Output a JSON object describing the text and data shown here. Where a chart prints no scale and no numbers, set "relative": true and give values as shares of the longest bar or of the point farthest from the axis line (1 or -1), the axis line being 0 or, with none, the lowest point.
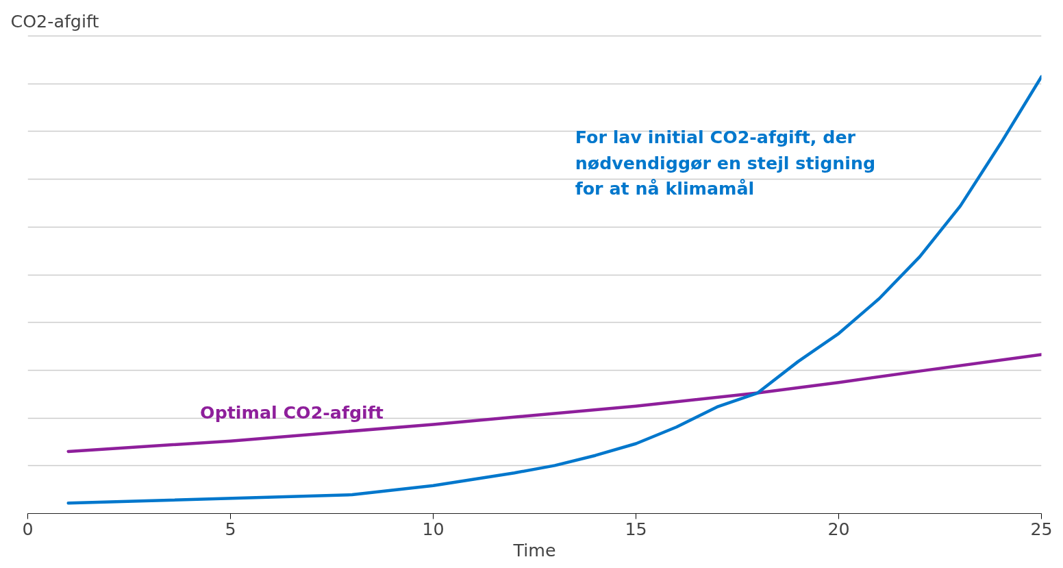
{
  "chart_data": {
    "type": "line",
    "relative": true,
    "ylabel": "CO2-afgift",
    "xlabel": "Time",
    "xlim": [
      0,
      25
    ],
    "xticks": [
      0,
      5,
      10,
      15,
      20,
      25
    ],
    "grid": "y",
    "line_style": "solid",
    "marker": "none",
    "series": [
      {
        "name": "Optimal CO2-afgift",
        "color": "#8e1f9b",
        "x": [
          1,
          5,
          10,
          15,
          18,
          20,
          22,
          25
        ],
        "values": [
          0.142,
          0.166,
          0.204,
          0.246,
          0.276,
          0.3,
          0.326,
          0.364
        ]
      },
      {
        "name": "For lav initial CO2-afgift, der\nnødvendiggør en stejl stigning\nfor at nå klimamål",
        "color": "#0077cc",
        "x": [
          1,
          8,
          10,
          12,
          13,
          14,
          15,
          16,
          17,
          18,
          19,
          20,
          21,
          22,
          23,
          24,
          25
        ],
        "values": [
          0.024,
          0.043,
          0.064,
          0.093,
          0.11,
          0.133,
          0.16,
          0.198,
          0.244,
          0.276,
          0.348,
          0.412,
          0.492,
          0.588,
          0.704,
          0.848,
          1
        ]
      }
    ]
  }
}
